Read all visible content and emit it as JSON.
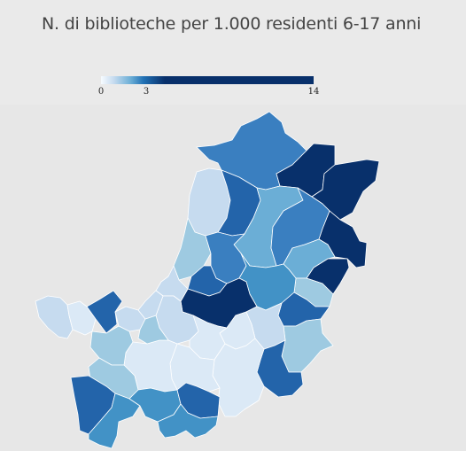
{
  "title": "N. di biblioteche per 1.000 residenti 6-17 anni",
  "legend": {
    "min_label": "0",
    "mid_label": "3",
    "max_label": "14",
    "min_value": 0,
    "mid_value": 3,
    "max_value": 14,
    "colors": [
      "#f7fbff",
      "#c6dbef",
      "#6baed6",
      "#2171b5",
      "#08306b"
    ]
  },
  "colors": {
    "background": "#eaeaea",
    "map_background": "#e7e7e7",
    "title": "#444444",
    "border": "#ffffff",
    "c1": "#dbe9f6",
    "c2": "#c6dbef",
    "c3": "#9ecae1",
    "c4": "#6baed6",
    "c5": "#4292c6",
    "c6": "#3a7fc0",
    "c7": "#2364aa",
    "c8": "#08306b"
  }
}
